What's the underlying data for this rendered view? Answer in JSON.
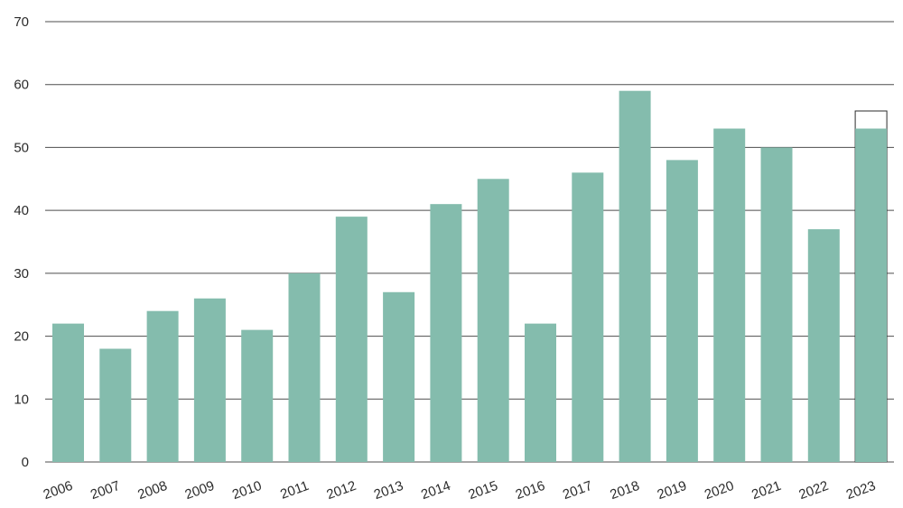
{
  "chart_data": {
    "type": "bar",
    "title": "",
    "xlabel": "",
    "ylabel": "",
    "categories": [
      "2006",
      "2007",
      "2008",
      "2009",
      "2010",
      "2011",
      "2012",
      "2013",
      "2014",
      "2015",
      "2016",
      "2017",
      "2018",
      "2019",
      "2020",
      "2021",
      "2022",
      "2023"
    ],
    "values": [
      22,
      18,
      24,
      26,
      21,
      30,
      39,
      27,
      41,
      45,
      22,
      46,
      59,
      48,
      53,
      50,
      37,
      53
    ],
    "outlined_extension": {
      "category": "2023",
      "top_value": 55.8
    },
    "ylim": [
      0,
      70
    ],
    "yticks": [
      0,
      10,
      20,
      30,
      40,
      50,
      60,
      70
    ],
    "grid": true,
    "legend": "none",
    "x_tick_rotation": "angled",
    "colors": {
      "bar": "#84bcad",
      "grid": "#4d4d4d",
      "text": "#2b2b2b",
      "outline": "#2b2b2b"
    }
  }
}
